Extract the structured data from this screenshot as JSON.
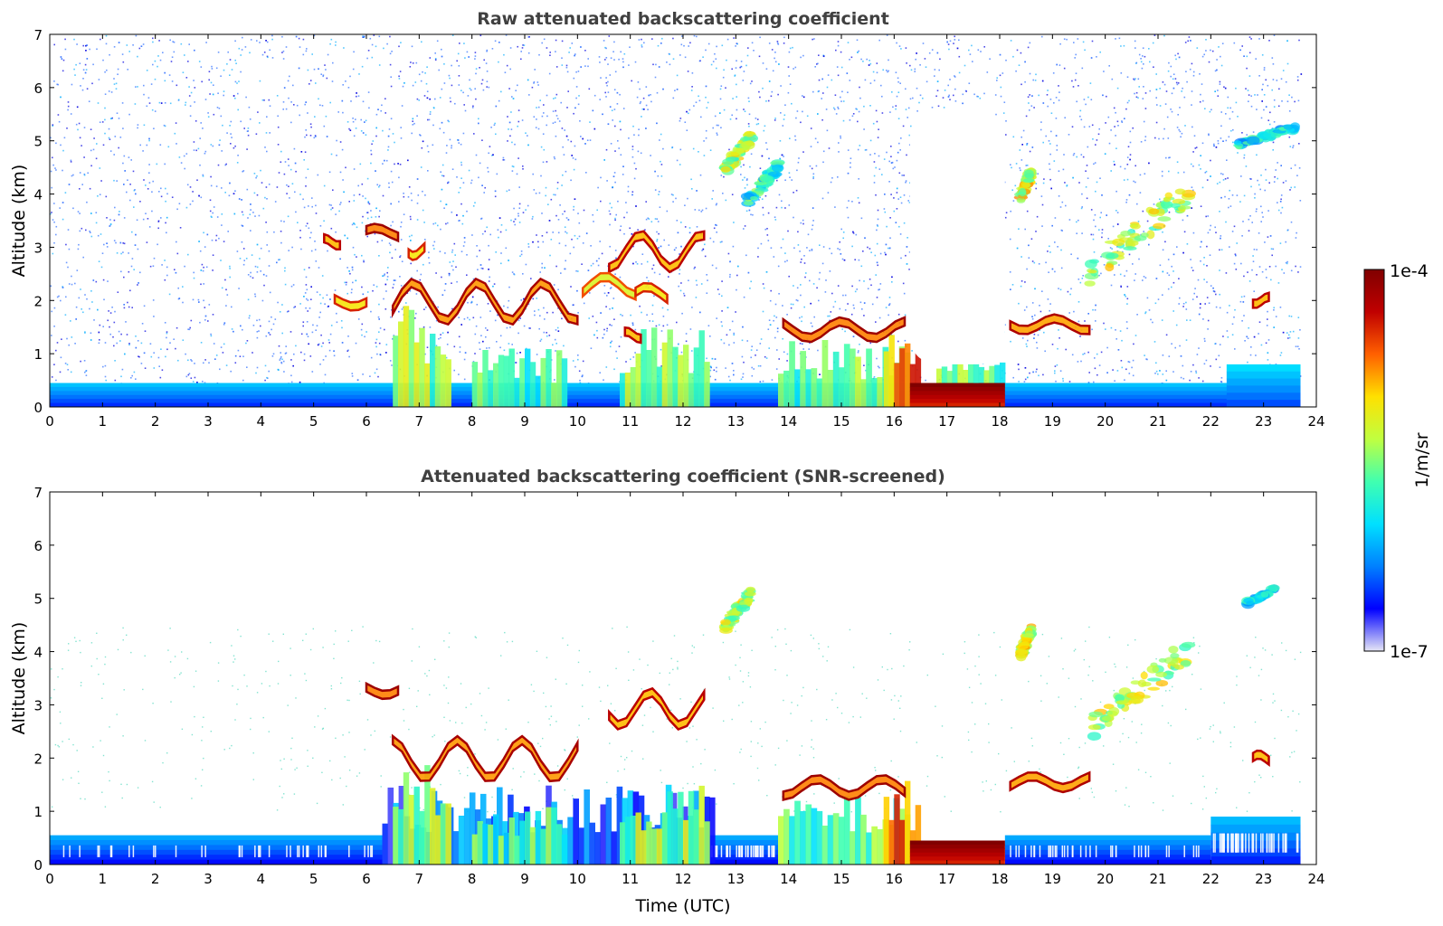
{
  "chart_data": [
    {
      "type": "heatmap",
      "title": "Raw attenuated backscattering coefficient",
      "xlabel": "",
      "ylabel": "Altitude (km)",
      "xlim": [
        0,
        24
      ],
      "ylim": [
        0,
        7
      ],
      "x_ticks": [
        "0",
        "1",
        "2",
        "3",
        "4",
        "5",
        "6",
        "7",
        "8",
        "9",
        "10",
        "11",
        "12",
        "13",
        "14",
        "15",
        "16",
        "17",
        "18",
        "19",
        "20",
        "21",
        "22",
        "23",
        "24"
      ],
      "y_ticks": [
        "0",
        "1",
        "2",
        "3",
        "4",
        "5",
        "6",
        "7"
      ],
      "screened": false,
      "features": [
        {
          "kind": "boundary-layer",
          "x": [
            0,
            23.7
          ],
          "y": [
            0,
            0.45
          ],
          "level": 0.15
        },
        {
          "kind": "boundary-layer",
          "x": [
            22.3,
            23.7
          ],
          "y": [
            0,
            0.8
          ],
          "level": 0.18
        },
        {
          "kind": "plume",
          "x": [
            6.5,
            7.6
          ],
          "y": [
            0,
            1.9
          ],
          "level": 0.5
        },
        {
          "kind": "plume",
          "x": [
            8.0,
            9.8
          ],
          "y": [
            0,
            1.1
          ],
          "level": 0.42
        },
        {
          "kind": "plume",
          "x": [
            10.8,
            12.5
          ],
          "y": [
            0,
            1.5
          ],
          "level": 0.5
        },
        {
          "kind": "plume",
          "x": [
            13.8,
            16.3
          ],
          "y": [
            0,
            1.3
          ],
          "level": 0.45
        },
        {
          "kind": "plume",
          "x": [
            15.8,
            16.5
          ],
          "y": [
            0,
            1.6
          ],
          "level": 0.75
        },
        {
          "kind": "dense-layer",
          "x": [
            16.3,
            18.1
          ],
          "y": [
            0,
            0.45
          ],
          "level": 0.85
        },
        {
          "kind": "plume",
          "x": [
            16.8,
            18.1
          ],
          "y": [
            0.45,
            0.9
          ],
          "level": 0.45
        },
        {
          "kind": "cloud-layer",
          "x": [
            6.5,
            10.0
          ],
          "y": [
            1.6,
            2.4
          ],
          "level": 0.93
        },
        {
          "kind": "cloud",
          "x": [
            6.0,
            6.6
          ],
          "y": [
            3.2,
            3.4
          ],
          "level": 0.95
        },
        {
          "kind": "cloud",
          "x": [
            5.2,
            5.5
          ],
          "y": [
            3.05,
            3.2
          ],
          "level": 0.9
        },
        {
          "kind": "cloud",
          "x": [
            5.4,
            6.0
          ],
          "y": [
            1.9,
            2.1
          ],
          "level": 0.85
        },
        {
          "kind": "cloud",
          "x": [
            6.8,
            7.1
          ],
          "y": [
            2.85,
            3.05
          ],
          "level": 0.85
        },
        {
          "kind": "cloud",
          "x": [
            10.6,
            12.4
          ],
          "y": [
            2.6,
            3.3
          ],
          "level": 0.9
        },
        {
          "kind": "cloud",
          "x": [
            10.1,
            11.1
          ],
          "y": [
            2.1,
            2.5
          ],
          "level": 0.8
        },
        {
          "kind": "cloud",
          "x": [
            11.1,
            11.7
          ],
          "y": [
            2.0,
            2.3
          ],
          "level": 0.85
        },
        {
          "kind": "cloud",
          "x": [
            10.9,
            11.2
          ],
          "y": [
            1.3,
            1.45
          ],
          "level": 0.9
        },
        {
          "kind": "cloud-layer",
          "x": [
            13.9,
            16.2
          ],
          "y": [
            1.3,
            1.65
          ],
          "level": 0.95
        },
        {
          "kind": "cloud",
          "x": [
            18.2,
            19.7
          ],
          "y": [
            1.45,
            1.7
          ],
          "level": 0.92
        },
        {
          "kind": "cloud",
          "x": [
            22.8,
            23.1
          ],
          "y": [
            1.95,
            2.1
          ],
          "level": 0.9
        },
        {
          "kind": "cirrus",
          "x": [
            12.8,
            13.3
          ],
          "y": [
            4.4,
            5.2
          ],
          "level": 0.55
        },
        {
          "kind": "cirrus",
          "x": [
            13.2,
            13.8
          ],
          "y": [
            3.8,
            4.6
          ],
          "level": 0.4
        },
        {
          "kind": "cirrus",
          "x": [
            18.4,
            18.6
          ],
          "y": [
            3.9,
            4.5
          ],
          "level": 0.6
        },
        {
          "kind": "cirrus",
          "x": [
            19.7,
            21.6
          ],
          "y": [
            2.4,
            4.3
          ],
          "level": 0.55
        },
        {
          "kind": "cirrus",
          "x": [
            22.5,
            23.6
          ],
          "y": [
            4.9,
            5.3
          ],
          "level": 0.35
        },
        {
          "kind": "clear-gap",
          "x": [
            16.3,
            18.1
          ],
          "y": [
            0.8,
            5.6
          ],
          "level": 0
        }
      ]
    },
    {
      "type": "heatmap",
      "title": "Attenuated backscattering coefficient (SNR-screened)",
      "xlabel": "Time (UTC)",
      "ylabel": "Altitude (km)",
      "xlim": [
        0,
        24
      ],
      "ylim": [
        0,
        7
      ],
      "x_ticks": [
        "0",
        "1",
        "2",
        "3",
        "4",
        "5",
        "6",
        "7",
        "8",
        "9",
        "10",
        "11",
        "12",
        "13",
        "14",
        "15",
        "16",
        "17",
        "18",
        "19",
        "20",
        "21",
        "22",
        "23",
        "24"
      ],
      "y_ticks": [
        "0",
        "1",
        "2",
        "3",
        "4",
        "5",
        "6",
        "7"
      ],
      "screened": true,
      "features": [
        {
          "kind": "boundary-layer",
          "x": [
            0,
            6.3
          ],
          "y": [
            0,
            0.55
          ],
          "level": 0.12
        },
        {
          "kind": "boundary-layer",
          "x": [
            12.5,
            13.8
          ],
          "y": [
            0,
            0.55
          ],
          "level": 0.12
        },
        {
          "kind": "boundary-layer",
          "x": [
            18.1,
            22.0
          ],
          "y": [
            0,
            0.55
          ],
          "level": 0.12
        },
        {
          "kind": "boundary-layer",
          "x": [
            22.0,
            23.7
          ],
          "y": [
            0,
            0.9
          ],
          "level": 0.14
        },
        {
          "kind": "plume",
          "x": [
            6.3,
            12.6
          ],
          "y": [
            0,
            1.5
          ],
          "level": 0.2
        },
        {
          "kind": "plume",
          "x": [
            6.5,
            7.6
          ],
          "y": [
            0,
            1.9
          ],
          "level": 0.5
        },
        {
          "kind": "plume",
          "x": [
            8.0,
            9.8
          ],
          "y": [
            0,
            1.1
          ],
          "level": 0.42
        },
        {
          "kind": "plume",
          "x": [
            10.8,
            12.5
          ],
          "y": [
            0,
            1.5
          ],
          "level": 0.5
        },
        {
          "kind": "plume",
          "x": [
            13.8,
            16.3
          ],
          "y": [
            0,
            1.3
          ],
          "level": 0.45
        },
        {
          "kind": "plume",
          "x": [
            15.8,
            16.5
          ],
          "y": [
            0,
            1.6
          ],
          "level": 0.75
        },
        {
          "kind": "dense-layer",
          "x": [
            16.3,
            18.1
          ],
          "y": [
            0,
            0.45
          ],
          "level": 0.85
        },
        {
          "kind": "cloud-layer",
          "x": [
            6.5,
            10.0
          ],
          "y": [
            1.6,
            2.4
          ],
          "level": 0.93
        },
        {
          "kind": "cloud",
          "x": [
            6.0,
            6.6
          ],
          "y": [
            3.2,
            3.4
          ],
          "level": 0.95
        },
        {
          "kind": "cloud",
          "x": [
            10.6,
            12.4
          ],
          "y": [
            2.6,
            3.3
          ],
          "level": 0.9
        },
        {
          "kind": "cloud-layer",
          "x": [
            13.9,
            16.2
          ],
          "y": [
            1.3,
            1.65
          ],
          "level": 0.95
        },
        {
          "kind": "cloud",
          "x": [
            18.2,
            19.7
          ],
          "y": [
            1.45,
            1.7
          ],
          "level": 0.92
        },
        {
          "kind": "cloud",
          "x": [
            22.8,
            23.1
          ],
          "y": [
            1.95,
            2.1
          ],
          "level": 0.9
        },
        {
          "kind": "cirrus",
          "x": [
            12.8,
            13.3
          ],
          "y": [
            4.4,
            5.2
          ],
          "level": 0.55
        },
        {
          "kind": "cirrus",
          "x": [
            18.4,
            18.6
          ],
          "y": [
            3.9,
            4.5
          ],
          "level": 0.6
        },
        {
          "kind": "cirrus",
          "x": [
            19.7,
            21.6
          ],
          "y": [
            2.4,
            4.3
          ],
          "level": 0.55
        },
        {
          "kind": "cirrus",
          "x": [
            22.7,
            23.2
          ],
          "y": [
            4.9,
            5.2
          ],
          "level": 0.35
        }
      ]
    }
  ],
  "colorbar": {
    "label": "1/m/sr",
    "max_label": "1e-4",
    "min_label": "1e-7",
    "scale": "log",
    "range": [
      1e-07,
      0.0001
    ],
    "colormap": [
      "#e6e6f5",
      "#0000ff",
      "#0080ff",
      "#00e0ff",
      "#40ffb0",
      "#c0ff40",
      "#ffe000",
      "#ff6000",
      "#c00000",
      "#800000"
    ]
  }
}
